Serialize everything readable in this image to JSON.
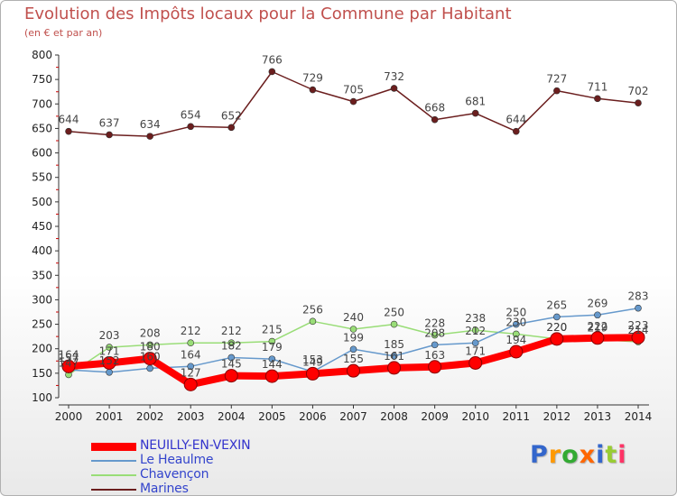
{
  "chart_data": {
    "type": "line",
    "title": "Evolution des Impôts locaux pour la Commune par Habitant",
    "subtitle": "(en € et par an)",
    "categories": [
      "2000",
      "2001",
      "2002",
      "2003",
      "2004",
      "2005",
      "2006",
      "2007",
      "2008",
      "2009",
      "2010",
      "2011",
      "2012",
      "2013",
      "2014"
    ],
    "ylim": [
      100,
      800
    ],
    "yticks": [
      100,
      150,
      200,
      250,
      300,
      350,
      400,
      450,
      500,
      550,
      600,
      650,
      700,
      750,
      800
    ],
    "grid": false,
    "legend_position": "bottom-left",
    "series": [
      {
        "name": "NEUILLY-EN-VEXIN",
        "color": "#ff0000",
        "values": [
          164,
          171,
          180,
          127,
          145,
          144,
          149,
          155,
          161,
          163,
          171,
          194,
          220,
          222,
          223
        ]
      },
      {
        "name": "Le Heaulme",
        "color": "#6699cc",
        "values": [
          157,
          152,
          160,
          164,
          182,
          179,
          153,
          199,
          185,
          208,
          212,
          250,
          265,
          269,
          283
        ]
      },
      {
        "name": "Chavençon",
        "color": "#99dd77",
        "values": [
          147,
          203,
          208,
          212,
          212,
          215,
          256,
          240,
          250,
          228,
          238,
          230,
          220,
          219,
          214
        ]
      },
      {
        "name": "Marines",
        "color": "#6b1e1e",
        "values": [
          644,
          637,
          634,
          654,
          652,
          766,
          729,
          705,
          732,
          668,
          681,
          644,
          727,
          711,
          702
        ]
      }
    ]
  },
  "logo": {
    "letters": [
      "P",
      "r",
      "o",
      "x",
      "i",
      "t",
      "i"
    ],
    "colors": [
      "#3366cc",
      "#ff9900",
      "#33aa33",
      "#ff6600",
      "#3366cc",
      "#99cc33",
      "#ff3366"
    ]
  }
}
